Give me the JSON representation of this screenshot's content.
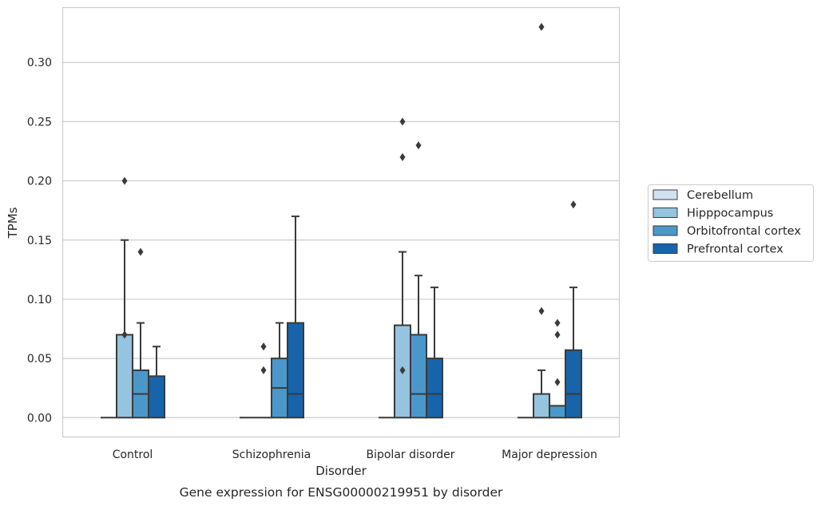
{
  "chart_data": {
    "type": "box",
    "title": "",
    "caption": "Gene expression for ENSG00000219951 by disorder",
    "xlabel": "Disorder",
    "ylabel": "TPMs",
    "ylim": [
      -0.016,
      0.346
    ],
    "yticks": [
      0.0,
      0.05,
      0.1,
      0.15,
      0.2,
      0.25,
      0.3
    ],
    "ytick_labels": [
      "0.00",
      "0.05",
      "0.10",
      "0.15",
      "0.20",
      "0.25",
      "0.30"
    ],
    "grid": "horizontal",
    "legend_position": "right",
    "categories": [
      "Control",
      "Schizophrenia",
      "Bipolar disorder",
      "Major depression"
    ],
    "series": [
      {
        "name": "Cerebellum",
        "color": "#d0e1f2",
        "boxes": [
          {
            "min": 0,
            "q1": 0,
            "median": 0,
            "q3": 0,
            "max": 0,
            "outliers": []
          },
          {
            "min": 0,
            "q1": 0,
            "median": 0,
            "q3": 0,
            "max": 0,
            "outliers": []
          },
          {
            "min": 0,
            "q1": 0,
            "median": 0,
            "q3": 0,
            "max": 0,
            "outliers": []
          },
          {
            "min": 0,
            "q1": 0,
            "median": 0,
            "q3": 0,
            "max": 0,
            "outliers": []
          }
        ]
      },
      {
        "name": "Hipppocampus",
        "color": "#94c4df",
        "boxes": [
          {
            "min": 0,
            "q1": 0,
            "median": 0,
            "q3": 0.07,
            "max": 0.15,
            "outliers": [
              0.07,
              0.2
            ]
          },
          {
            "min": 0,
            "q1": 0,
            "median": 0,
            "q3": 0,
            "max": 0,
            "outliers": [
              0.04,
              0.06
            ]
          },
          {
            "min": 0,
            "q1": 0,
            "median": 0,
            "q3": 0.078,
            "max": 0.14,
            "outliers": [
              0.04,
              0.22,
              0.25
            ]
          },
          {
            "min": 0,
            "q1": 0,
            "median": 0,
            "q3": 0.02,
            "max": 0.04,
            "outliers": [
              0.09,
              0.33
            ]
          }
        ]
      },
      {
        "name": "Orbitofrontal cortex",
        "color": "#4a98c9",
        "boxes": [
          {
            "min": 0,
            "q1": 0,
            "median": 0.02,
            "q3": 0.04,
            "max": 0.08,
            "outliers": [
              0.14
            ]
          },
          {
            "min": 0,
            "q1": 0,
            "median": 0.025,
            "q3": 0.05,
            "max": 0.08,
            "outliers": []
          },
          {
            "min": 0,
            "q1": 0,
            "median": 0.02,
            "q3": 0.07,
            "max": 0.12,
            "outliers": [
              0.23
            ]
          },
          {
            "min": 0,
            "q1": 0,
            "median": 0,
            "q3": 0.01,
            "max": 0.01,
            "outliers": [
              0.03,
              0.07,
              0.08
            ]
          }
        ]
      },
      {
        "name": "Prefrontal cortex",
        "color": "#1764ab",
        "boxes": [
          {
            "min": 0,
            "q1": 0,
            "median": 0,
            "q3": 0.035,
            "max": 0.06,
            "outliers": []
          },
          {
            "min": 0,
            "q1": 0,
            "median": 0.02,
            "q3": 0.08,
            "max": 0.17,
            "outliers": []
          },
          {
            "min": 0,
            "q1": 0,
            "median": 0.02,
            "q3": 0.05,
            "max": 0.11,
            "outliers": []
          },
          {
            "min": 0,
            "q1": 0,
            "median": 0.02,
            "q3": 0.057,
            "max": 0.11,
            "outliers": [
              0.18
            ]
          }
        ]
      }
    ]
  }
}
